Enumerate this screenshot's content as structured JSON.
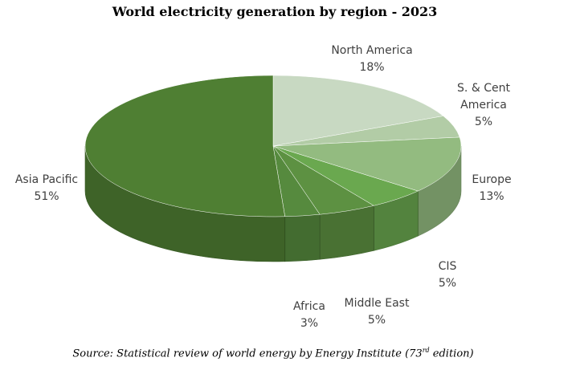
{
  "chart_data": {
    "type": "pie",
    "title": "World electricity generation by region - 2023",
    "slices": [
      {
        "label": "North America",
        "value": 18,
        "value_label": "18%",
        "color": "#c8d9c2"
      },
      {
        "label": "S. & Cent America",
        "label_lines": [
          "S. & Cent",
          "America"
        ],
        "value": 5,
        "value_label": "5%",
        "color": "#b2cca6"
      },
      {
        "label": "Europe",
        "value": 13,
        "value_label": "13%",
        "color": "#93bb80"
      },
      {
        "label": "CIS",
        "value": 5,
        "value_label": "5%",
        "color": "#6aa84f"
      },
      {
        "label": "Middle East",
        "value": 5,
        "value_label": "5%",
        "color": "#5d9142"
      },
      {
        "label": "Africa",
        "value": 3,
        "value_label": "3%",
        "color": "#568a3e"
      },
      {
        "label": "Asia Pacific",
        "value": 51,
        "value_label": "51%",
        "color": "#4f7f33"
      }
    ],
    "source": {
      "prefix": "Source: Statistical review of world energy by Energy Institute (73",
      "superscript": "rd",
      "suffix": " edition)"
    }
  }
}
